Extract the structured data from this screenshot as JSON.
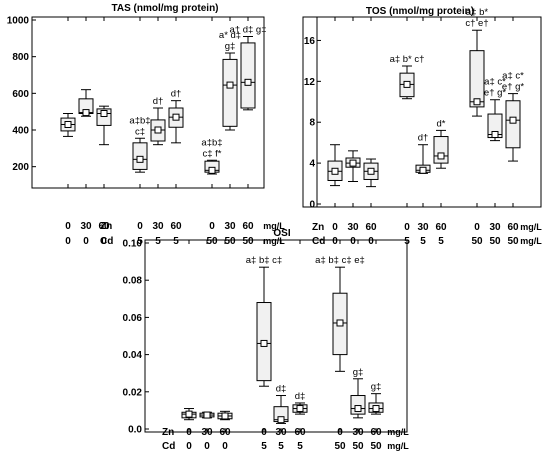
{
  "chart_data": [
    {
      "type": "box",
      "title": "TAS (nmol/mg protein)",
      "ylim": [
        100,
        1000
      ],
      "yticks": [
        200,
        400,
        600,
        800,
        1000
      ],
      "grid": false,
      "groups": [
        {
          "zn": "0",
          "cd": "0",
          "whisker_low": 365,
          "q1": 395,
          "median": 430,
          "q3": 465,
          "whisker_high": 490,
          "mean": 430,
          "annotation": []
        },
        {
          "zn": "30",
          "cd": "0",
          "whisker_low": 475,
          "q1": 490,
          "median": 495,
          "q3": 570,
          "whisker_high": 620,
          "mean": 495,
          "annotation": []
        },
        {
          "zn": "60",
          "cd": "0",
          "whisker_low": 320,
          "q1": 425,
          "median": 490,
          "q3": 515,
          "whisker_high": 530,
          "mean": 490,
          "annotation": []
        },
        {
          "zn": "0",
          "cd": "5",
          "whisker_low": 170,
          "q1": 185,
          "median": 240,
          "q3": 330,
          "whisker_high": 355,
          "mean": 240,
          "annotation": [
            "a‡b‡",
            "c‡"
          ]
        },
        {
          "zn": "30",
          "cd": "5",
          "whisker_low": 320,
          "q1": 340,
          "median": 400,
          "q3": 455,
          "whisker_high": 520,
          "mean": 400,
          "annotation": [
            "d†"
          ]
        },
        {
          "zn": "60",
          "cd": "5",
          "whisker_low": 330,
          "q1": 415,
          "median": 470,
          "q3": 520,
          "whisker_high": 560,
          "mean": 470,
          "annotation": [
            "d†"
          ]
        },
        {
          "zn": "0",
          "cd": "50",
          "whisker_low": 160,
          "q1": 170,
          "median": 180,
          "q3": 230,
          "whisker_high": 235,
          "mean": 180,
          "annotation": [
            "a‡b‡",
            "c‡ f*"
          ]
        },
        {
          "zn": "30",
          "cd": "50",
          "whisker_low": 400,
          "q1": 420,
          "median": 645,
          "q3": 785,
          "whisker_high": 820,
          "mean": 645,
          "annotation": [
            "a* d‡",
            "g‡"
          ]
        },
        {
          "zn": "60",
          "cd": "50",
          "whisker_low": 510,
          "q1": 520,
          "median": 660,
          "q3": 875,
          "whisker_high": 910,
          "mean": 660,
          "annotation": [
            "a† d‡ g‡"
          ]
        }
      ]
    },
    {
      "type": "box",
      "title": "TOS (nmol/mg protein)",
      "ylim": [
        0,
        18
      ],
      "yticks": [
        0,
        4,
        8,
        12,
        16
      ],
      "grid": false,
      "groups": [
        {
          "zn": "0",
          "cd": "0",
          "whisker_low": 1.8,
          "q1": 2.3,
          "median": 3.2,
          "q3": 4.2,
          "whisker_high": 5.8,
          "mean": 3.2,
          "annotation": []
        },
        {
          "zn": "30",
          "cd": "0",
          "whisker_low": 2.2,
          "q1": 3.6,
          "median": 4.0,
          "q3": 4.5,
          "whisker_high": 5.2,
          "mean": 4.0,
          "annotation": []
        },
        {
          "zn": "60",
          "cd": "0",
          "whisker_low": 1.7,
          "q1": 2.4,
          "median": 3.2,
          "q3": 4.0,
          "whisker_high": 4.4,
          "mean": 3.2,
          "annotation": []
        },
        {
          "zn": "0",
          "cd": "5",
          "whisker_low": 10.3,
          "q1": 10.5,
          "median": 11.7,
          "q3": 12.8,
          "whisker_high": 13.5,
          "mean": 11.7,
          "annotation": [
            "a‡ b* c†"
          ]
        },
        {
          "zn": "30",
          "cd": "5",
          "whisker_low": 3.0,
          "q1": 3.1,
          "median": 3.3,
          "q3": 3.8,
          "whisker_high": 5.8,
          "mean": 3.3,
          "annotation": [
            "d†"
          ]
        },
        {
          "zn": "60",
          "cd": "5",
          "whisker_low": 3.5,
          "q1": 4.0,
          "median": 4.7,
          "q3": 6.6,
          "whisker_high": 7.2,
          "mean": 4.7,
          "annotation": [
            "d*"
          ]
        },
        {
          "zn": "0",
          "cd": "50",
          "whisker_low": 8.6,
          "q1": 9.5,
          "median": 10.0,
          "q3": 15.0,
          "whisker_high": 17.0,
          "mean": 10.0,
          "annotation": [
            "a‡ b*",
            "c† e†"
          ]
        },
        {
          "zn": "30",
          "cd": "50",
          "whisker_low": 6.2,
          "q1": 6.5,
          "median": 6.8,
          "q3": 8.8,
          "whisker_high": 10.2,
          "mean": 6.8,
          "annotation": [
            "a‡ c*",
            "e† g*"
          ]
        },
        {
          "zn": "60",
          "cd": "50",
          "whisker_low": 4.2,
          "q1": 5.5,
          "median": 8.2,
          "q3": 10.1,
          "whisker_high": 10.8,
          "mean": 8.2,
          "annotation": [
            "a‡ c*",
            "e† g*"
          ]
        }
      ]
    },
    {
      "type": "box",
      "title": "OSI",
      "ylim": [
        0,
        0.1
      ],
      "yticks": [
        "0.0",
        "0.02",
        "0.04",
        "0.06",
        "0.08",
        "0.10"
      ],
      "grid": false,
      "groups": [
        {
          "zn": "0",
          "cd": "0",
          "whisker_low": 0.005,
          "q1": 0.006,
          "median": 0.008,
          "q3": 0.009,
          "whisker_high": 0.011,
          "mean": 0.008,
          "annotation": []
        },
        {
          "zn": "30",
          "cd": "0",
          "whisker_low": 0.006,
          "q1": 0.0065,
          "median": 0.0075,
          "q3": 0.0085,
          "whisker_high": 0.009,
          "mean": 0.0075,
          "annotation": []
        },
        {
          "zn": "60",
          "cd": "0",
          "whisker_low": 0.005,
          "q1": 0.0055,
          "median": 0.007,
          "q3": 0.0085,
          "whisker_high": 0.0095,
          "mean": 0.007,
          "annotation": []
        },
        {
          "zn": "0",
          "cd": "5",
          "whisker_low": 0.023,
          "q1": 0.026,
          "median": 0.046,
          "q3": 0.068,
          "whisker_high": 0.087,
          "mean": 0.046,
          "annotation": [
            "a‡ b‡ c‡"
          ]
        },
        {
          "zn": "30",
          "cd": "5",
          "whisker_low": 0.003,
          "q1": 0.004,
          "median": 0.005,
          "q3": 0.012,
          "whisker_high": 0.018,
          "mean": 0.005,
          "annotation": [
            "d‡"
          ]
        },
        {
          "zn": "60",
          "cd": "5",
          "whisker_low": 0.008,
          "q1": 0.009,
          "median": 0.011,
          "q3": 0.013,
          "whisker_high": 0.014,
          "mean": 0.011,
          "annotation": [
            "d‡"
          ]
        },
        {
          "zn": "0",
          "cd": "50",
          "whisker_low": 0.031,
          "q1": 0.04,
          "median": 0.057,
          "q3": 0.073,
          "whisker_high": 0.087,
          "mean": 0.057,
          "annotation": [
            "a‡ b‡ c‡ e‡"
          ]
        },
        {
          "zn": "30",
          "cd": "50",
          "whisker_low": 0.006,
          "q1": 0.008,
          "median": 0.011,
          "q3": 0.018,
          "whisker_high": 0.027,
          "mean": 0.011,
          "annotation": [
            "g‡"
          ]
        },
        {
          "zn": "60",
          "cd": "50",
          "whisker_low": 0.008,
          "q1": 0.009,
          "median": 0.011,
          "q3": 0.014,
          "whisker_high": 0.019,
          "mean": 0.011,
          "annotation": [
            "g‡"
          ]
        }
      ]
    }
  ],
  "row_labels": {
    "zn": "Zn",
    "cd": "Cd"
  },
  "units": {
    "zn": "mg/L",
    "cd": "mg/L"
  }
}
